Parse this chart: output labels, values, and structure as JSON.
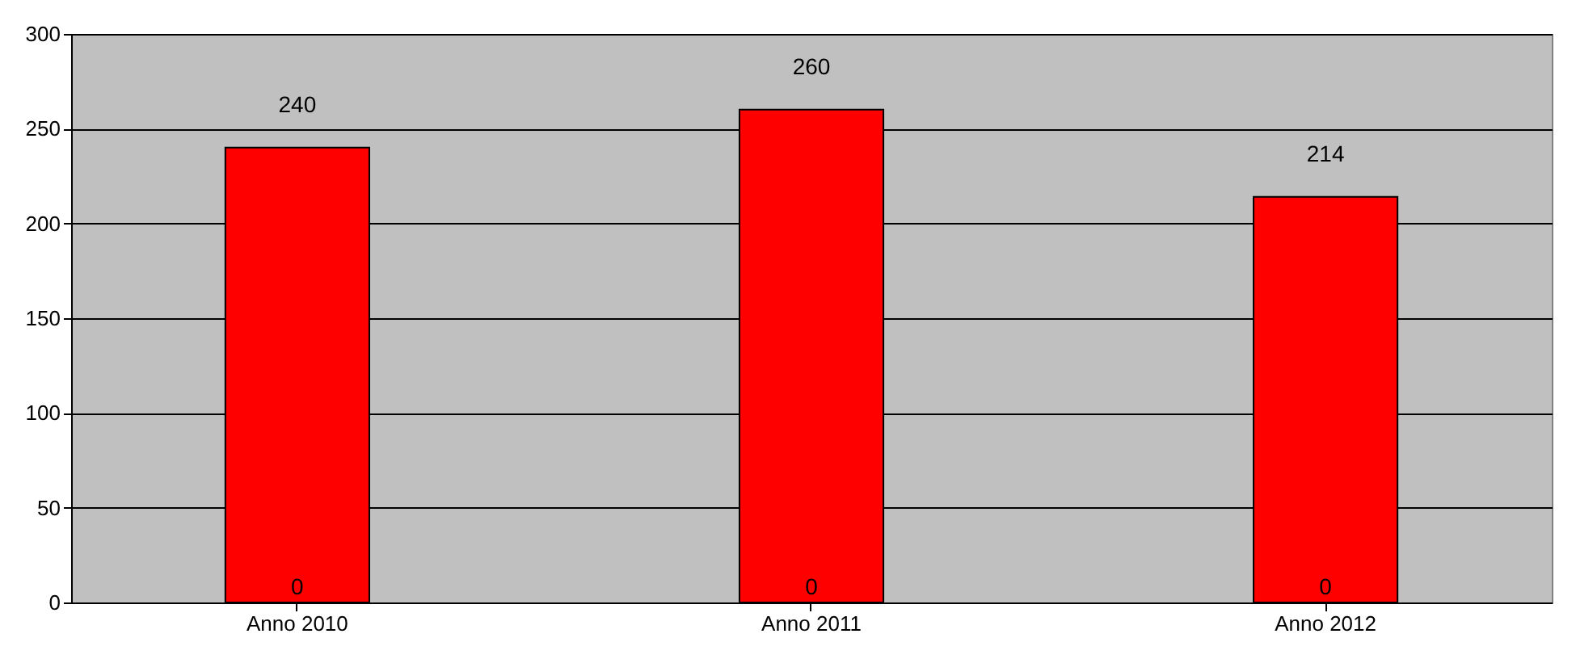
{
  "chart_data": {
    "type": "bar",
    "data_labels": true,
    "grid": "y",
    "color": "#ff0000",
    "categories": [
      "Anno 2010",
      "Anno 2011",
      "Anno 2012"
    ],
    "values": [
      240,
      260,
      214
    ],
    "annotations": [
      {
        "text": "0",
        "x": "Anno 2010",
        "y": 0
      },
      {
        "text": "0",
        "x": "Anno 2011",
        "y": 0
      },
      {
        "text": "0",
        "x": "Anno 2012",
        "y": 0
      }
    ],
    "ylim": [
      0,
      300
    ],
    "yticks": [
      0,
      50,
      100,
      150,
      200,
      250,
      300
    ]
  }
}
